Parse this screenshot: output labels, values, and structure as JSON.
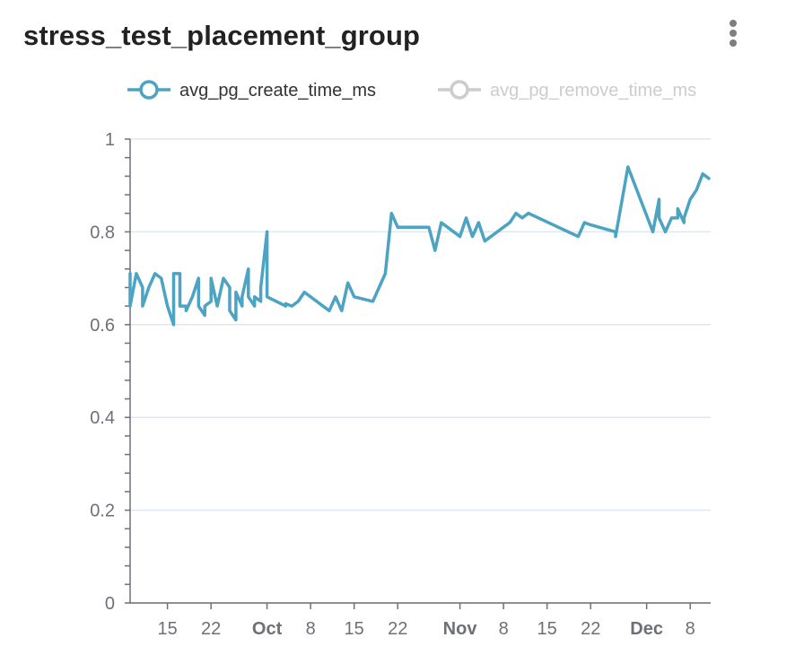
{
  "panel": {
    "title": "stress_test_placement_group"
  },
  "colors": {
    "series_active": "#4ca3c2",
    "series_inactive": "#cccccc",
    "legend_active_text": "#333333",
    "legend_inactive_text": "#cccccc",
    "gridline": "#e0e6f1",
    "axis": "#6e7079"
  },
  "chart_data": {
    "type": "line",
    "title": "stress_test_placement_group",
    "xlabel": "",
    "ylabel": "",
    "ylim": [
      0,
      1
    ],
    "y_ticks": [
      0,
      0.2,
      0.4,
      0.6,
      0.8,
      1
    ],
    "y_tick_labels": [
      "0",
      "0.2",
      "0.4",
      "0.6",
      "0.8",
      "1"
    ],
    "xlim": [
      "2023-09-09",
      "2023-12-08"
    ],
    "x_ticks": [
      {
        "date": "2023-09-15",
        "label": "15",
        "bold": false
      },
      {
        "date": "2023-09-22",
        "label": "22",
        "bold": false
      },
      {
        "date": "2023-10-01",
        "label": "Oct",
        "bold": true
      },
      {
        "date": "2023-10-08",
        "label": "8",
        "bold": false
      },
      {
        "date": "2023-10-15",
        "label": "15",
        "bold": false
      },
      {
        "date": "2023-10-22",
        "label": "22",
        "bold": false
      },
      {
        "date": "2023-11-01",
        "label": "Nov",
        "bold": true
      },
      {
        "date": "2023-11-08",
        "label": "8",
        "bold": false
      },
      {
        "date": "2023-11-15",
        "label": "15",
        "bold": false
      },
      {
        "date": "2023-11-22",
        "label": "22",
        "bold": false
      },
      {
        "date": "2023-12-01",
        "label": "Dec",
        "bold": true
      },
      {
        "date": "2023-12-08",
        "label": "8",
        "bold": false
      }
    ],
    "grid": true,
    "legend_position": "top",
    "series": [
      {
        "name": "avg_pg_create_time_ms",
        "visible": true,
        "points": [
          [
            "2023-09-09",
            0.71
          ],
          [
            "2023-09-09",
            0.64
          ],
          [
            "2023-09-10",
            0.71
          ],
          [
            "2023-09-11",
            0.68
          ],
          [
            "2023-09-11",
            0.64
          ],
          [
            "2023-09-12",
            0.68
          ],
          [
            "2023-09-13",
            0.71
          ],
          [
            "2023-09-14",
            0.7
          ],
          [
            "2023-09-15",
            0.64
          ],
          [
            "2023-09-16",
            0.6
          ],
          [
            "2023-09-16",
            0.71
          ],
          [
            "2023-09-17",
            0.71
          ],
          [
            "2023-09-17",
            0.64
          ],
          [
            "2023-09-18",
            0.64
          ],
          [
            "2023-09-18",
            0.63
          ],
          [
            "2023-09-19",
            0.66
          ],
          [
            "2023-09-20",
            0.7
          ],
          [
            "2023-09-20",
            0.64
          ],
          [
            "2023-09-21",
            0.62
          ],
          [
            "2023-09-21",
            0.64
          ],
          [
            "2023-09-22",
            0.65
          ],
          [
            "2023-09-22",
            0.7
          ],
          [
            "2023-09-23",
            0.64
          ],
          [
            "2023-09-23",
            0.64
          ],
          [
            "2023-09-24",
            0.7
          ],
          [
            "2023-09-25",
            0.68
          ],
          [
            "2023-09-25",
            0.63
          ],
          [
            "2023-09-26",
            0.61
          ],
          [
            "2023-09-26",
            0.67
          ],
          [
            "2023-09-27",
            0.64
          ],
          [
            "2023-09-27",
            0.66
          ],
          [
            "2023-09-28",
            0.72
          ],
          [
            "2023-09-28",
            0.66
          ],
          [
            "2023-09-29",
            0.64
          ],
          [
            "2023-09-29",
            0.66
          ],
          [
            "2023-09-30",
            0.65
          ],
          [
            "2023-09-30",
            0.68
          ],
          [
            "2023-10-01",
            0.8
          ],
          [
            "2023-10-01",
            0.66
          ],
          [
            "2023-10-04",
            0.64
          ],
          [
            "2023-10-04",
            0.645
          ],
          [
            "2023-10-05",
            0.64
          ],
          [
            "2023-10-06",
            0.65
          ],
          [
            "2023-10-07",
            0.67
          ],
          [
            "2023-10-11",
            0.63
          ],
          [
            "2023-10-12",
            0.66
          ],
          [
            "2023-10-13",
            0.63
          ],
          [
            "2023-10-14",
            0.69
          ],
          [
            "2023-10-15",
            0.66
          ],
          [
            "2023-10-18",
            0.65
          ],
          [
            "2023-10-20",
            0.71
          ],
          [
            "2023-10-21",
            0.84
          ],
          [
            "2023-10-22",
            0.81
          ],
          [
            "2023-10-26",
            0.81
          ],
          [
            "2023-10-27",
            0.81
          ],
          [
            "2023-10-28",
            0.76
          ],
          [
            "2023-10-29",
            0.82
          ],
          [
            "2023-11-01",
            0.79
          ],
          [
            "2023-11-02",
            0.83
          ],
          [
            "2023-11-03",
            0.79
          ],
          [
            "2023-11-04",
            0.82
          ],
          [
            "2023-11-05",
            0.78
          ],
          [
            "2023-11-08",
            0.81
          ],
          [
            "2023-11-09",
            0.82
          ],
          [
            "2023-11-10",
            0.84
          ],
          [
            "2023-11-11",
            0.83
          ],
          [
            "2023-11-12",
            0.84
          ],
          [
            "2023-11-20",
            0.79
          ],
          [
            "2023-11-21",
            0.82
          ],
          [
            "2023-11-22",
            0.815
          ],
          [
            "2023-11-26",
            0.8
          ],
          [
            "2023-11-26",
            0.79
          ],
          [
            "2023-11-28",
            0.94
          ],
          [
            "2023-12-02",
            0.8
          ],
          [
            "2023-12-03",
            0.87
          ],
          [
            "2023-12-03",
            0.83
          ],
          [
            "2023-12-04",
            0.8
          ],
          [
            "2023-12-05",
            0.83
          ],
          [
            "2023-12-06",
            0.83
          ],
          [
            "2023-12-06",
            0.85
          ],
          [
            "2023-12-07",
            0.82
          ],
          [
            "2023-12-07",
            0.83
          ],
          [
            "2023-12-08",
            0.87
          ],
          [
            "2023-12-09",
            0.89
          ],
          [
            "2023-12-10",
            0.925
          ],
          [
            "2023-12-11",
            0.915
          ]
        ]
      },
      {
        "name": "avg_pg_remove_time_ms",
        "visible": false,
        "points": []
      }
    ]
  }
}
